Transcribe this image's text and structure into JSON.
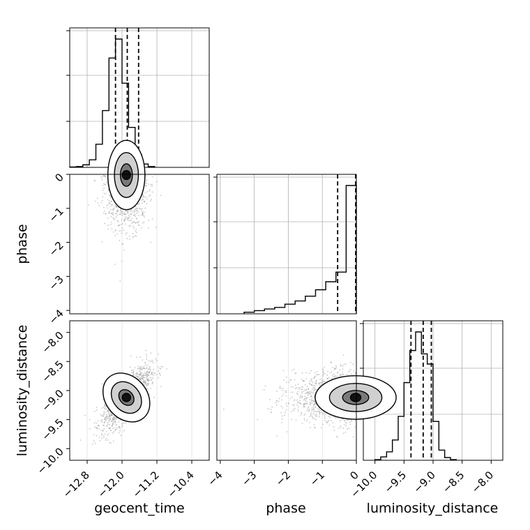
{
  "chart_data": {
    "type": "corner",
    "parameters": [
      "geocent_time",
      "phase",
      "luminosity_distance"
    ],
    "ranges": {
      "geocent_time": [
        -13.2,
        -10.0
      ],
      "phase": [
        -4.1,
        0.0
      ],
      "luminosity_distance": [
        -10.2,
        -7.8
      ]
    },
    "ticks": {
      "geocent_time": [
        -12.8,
        -12.0,
        -11.2,
        -10.4
      ],
      "phase": [
        -4,
        -3,
        -2,
        -1,
        0
      ],
      "luminosity_distance": [
        -10.0,
        -9.5,
        -9.0,
        -8.5,
        -8.0
      ]
    },
    "tick_labels": {
      "geocent_time": [
        "−12.8",
        "−12.0",
        "−11.2",
        "−10.4"
      ],
      "phase": [
        "−4",
        "−3",
        "−2",
        "−1",
        "0"
      ],
      "luminosity_distance": [
        "−10.0",
        "−9.5",
        "−9.0",
        "−8.5",
        "−8.0"
      ]
    },
    "quantiles": {
      "geocent_time": [
        -12.15,
        -11.88,
        -11.62
      ],
      "phase": [
        -0.55,
        -0.02
      ],
      "luminosity_distance": [
        -9.38,
        -9.17,
        -9.03
      ]
    },
    "histograms": {
      "geocent_time": {
        "edges": [
          -13.2,
          -13.05,
          -12.9,
          -12.75,
          -12.6,
          -12.45,
          -12.3,
          -12.15,
          -12.0,
          -11.85,
          -11.7,
          -11.55,
          -11.4,
          -11.25
        ],
        "counts": [
          1,
          2,
          6,
          18,
          55,
          135,
          260,
          305,
          200,
          95,
          30,
          8,
          2
        ]
      },
      "phase": {
        "edges": [
          -3.3,
          -3.0,
          -2.7,
          -2.4,
          -2.1,
          -1.8,
          -1.5,
          -1.2,
          -0.9,
          -0.6,
          -0.3,
          0.0
        ],
        "counts": [
          1,
          2,
          3,
          4,
          6,
          8,
          11,
          15,
          20,
          26,
          80
        ]
      },
      "luminosity_distance": {
        "edges": [
          -10.0,
          -9.9,
          -9.8,
          -9.7,
          -9.6,
          -9.5,
          -9.4,
          -9.3,
          -9.2,
          -9.1,
          -9.0,
          -8.9,
          -8.8,
          -8.7,
          -8.6
        ],
        "counts": [
          2,
          10,
          25,
          60,
          130,
          230,
          325,
          380,
          315,
          285,
          115,
          30,
          8,
          2
        ]
      }
    },
    "grid": true,
    "colors": {
      "line": "#000000",
      "points": "#9a9a9a",
      "grid": "#b0b0b0"
    }
  }
}
